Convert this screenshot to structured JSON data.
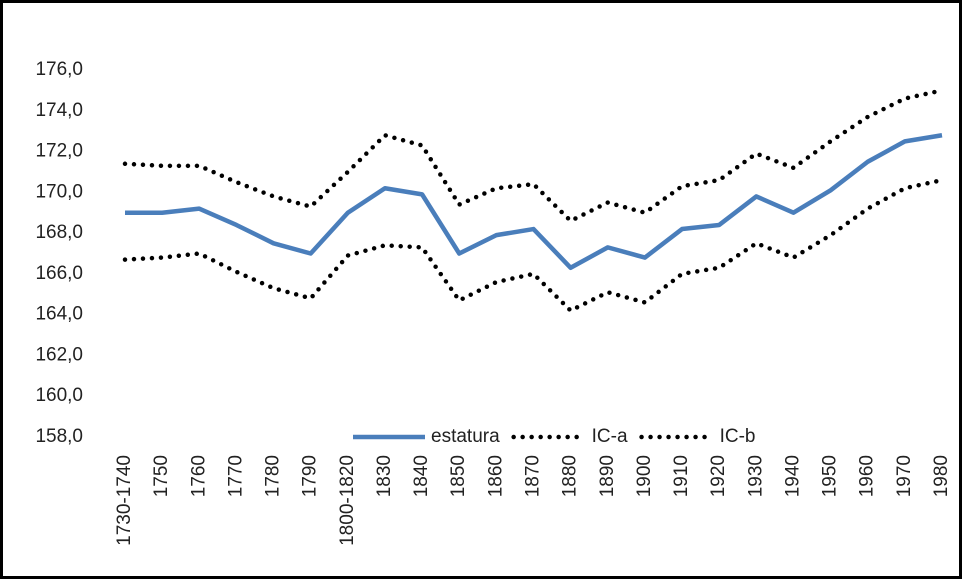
{
  "chart_data": {
    "type": "line",
    "categories": [
      "1730-1740",
      "1750",
      "1760",
      "1770",
      "1780",
      "1790",
      "1800-1820",
      "1830",
      "1840",
      "1850",
      "1860",
      "1870",
      "1880",
      "1890",
      "1900",
      "1910",
      "1920",
      "1930",
      "1940",
      "1950",
      "1960",
      "1970",
      "1980"
    ],
    "series": [
      {
        "name": "estatura",
        "color": "#4a7ebb",
        "style": "solid",
        "values": [
          169.0,
          169.0,
          169.2,
          168.4,
          167.5,
          167.0,
          169.0,
          170.2,
          169.9,
          167.0,
          167.9,
          168.2,
          166.3,
          167.3,
          166.8,
          168.2,
          168.4,
          169.8,
          169.0,
          170.1,
          171.5,
          172.5,
          172.8
        ]
      },
      {
        "name": "IC-a",
        "color": "#000000",
        "style": "dotted",
        "values": [
          171.4,
          171.3,
          171.3,
          170.5,
          169.8,
          169.3,
          171.0,
          172.8,
          172.3,
          169.4,
          170.2,
          170.4,
          168.6,
          169.5,
          169.0,
          170.3,
          170.6,
          171.9,
          171.2,
          172.5,
          173.7,
          174.6,
          175.0
        ]
      },
      {
        "name": "IC-b",
        "color": "#000000",
        "style": "dotted",
        "values": [
          166.7,
          166.8,
          167.0,
          166.1,
          165.3,
          164.8,
          166.9,
          167.4,
          167.3,
          164.7,
          165.6,
          166.0,
          164.2,
          165.1,
          164.6,
          166.0,
          166.3,
          167.5,
          166.8,
          167.9,
          169.2,
          170.2,
          170.6
        ]
      }
    ],
    "ylim": [
      158,
      176
    ],
    "yticks": [
      {
        "value": 158,
        "label": "158,0"
      },
      {
        "value": 160,
        "label": "160,0"
      },
      {
        "value": 162,
        "label": "162,0"
      },
      {
        "value": 164,
        "label": "164,0"
      },
      {
        "value": 166,
        "label": "166,0"
      },
      {
        "value": 168,
        "label": "168,0"
      },
      {
        "value": 170,
        "label": "170,0"
      },
      {
        "value": 172,
        "label": "172,0"
      },
      {
        "value": 174,
        "label": "174,0"
      },
      {
        "value": 176,
        "label": "176,0"
      }
    ],
    "grid": false,
    "legend": "bottom"
  }
}
